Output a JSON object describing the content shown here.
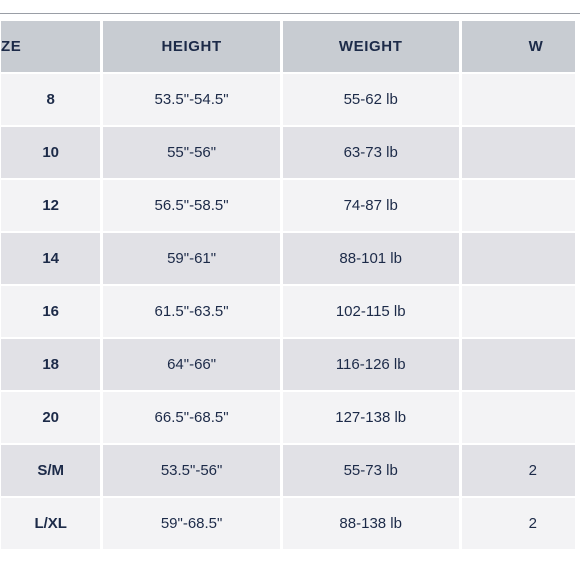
{
  "columns": {
    "size": "ZE",
    "height": "HEIGHT",
    "weight": "WEIGHT",
    "extra": "W"
  },
  "rows": [
    {
      "size": "8",
      "height": "53.5\"-54.5\"",
      "weight": "55-62 lb",
      "extra": ""
    },
    {
      "size": "10",
      "height": "55\"-56\"",
      "weight": "63-73 lb",
      "extra": ""
    },
    {
      "size": "12",
      "height": "56.5\"-58.5\"",
      "weight": "74-87 lb",
      "extra": ""
    },
    {
      "size": "14",
      "height": "59\"-61\"",
      "weight": "88-101 lb",
      "extra": ""
    },
    {
      "size": "16",
      "height": "61.5\"-63.5\"",
      "weight": "102-115 lb",
      "extra": ""
    },
    {
      "size": "18",
      "height": "64\"-66\"",
      "weight": "116-126 lb",
      "extra": ""
    },
    {
      "size": "20",
      "height": "66.5\"-68.5\"",
      "weight": "127-138 lb",
      "extra": ""
    },
    {
      "size": "S/M",
      "height": "53.5\"-56\"",
      "weight": "55-73 lb",
      "extra": "2"
    },
    {
      "size": "L/XL",
      "height": "59\"-68.5\"",
      "weight": "88-138 lb",
      "extra": "2"
    }
  ],
  "colors": {
    "header_bg": "#c8ccd2",
    "row_light": "#f3f3f5",
    "row_dark": "#e1e1e6",
    "text": "#1c2a48",
    "rule": "#9a9ea6"
  }
}
